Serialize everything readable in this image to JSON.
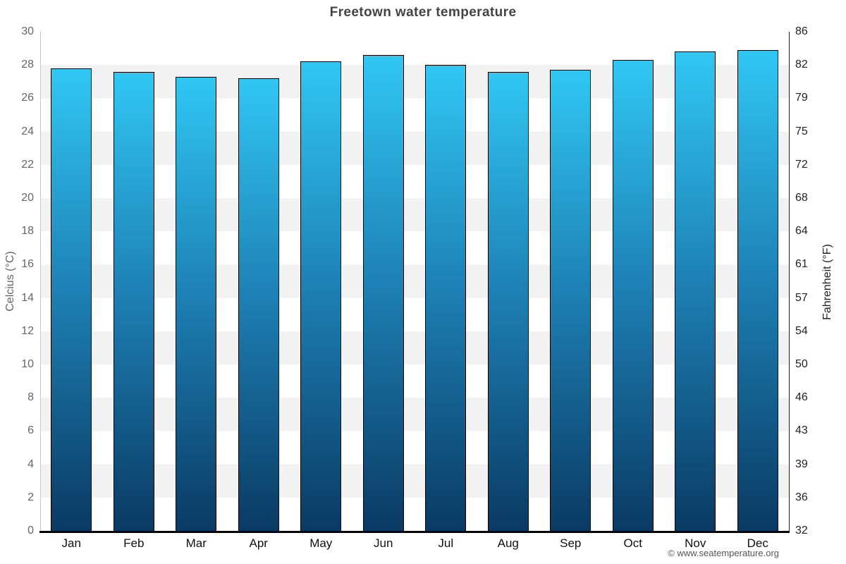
{
  "title": "Freetown water temperature",
  "footer": "© www.seatemperature.org",
  "axes": {
    "left_title": "Celcius (°C)",
    "right_title": "Fahrenheit (°F)"
  },
  "chart_data": {
    "type": "bar",
    "title": "Freetown water temperature",
    "categories": [
      "Jan",
      "Feb",
      "Mar",
      "Apr",
      "May",
      "Jun",
      "Jul",
      "Aug",
      "Sep",
      "Oct",
      "Nov",
      "Dec"
    ],
    "values": [
      27.8,
      27.6,
      27.3,
      27.2,
      28.2,
      28.6,
      28.0,
      27.6,
      27.7,
      28.3,
      28.8,
      28.9
    ],
    "xlabel": "",
    "ylabel_left": "Celcius (°C)",
    "ylabel_right": "Fahrenheit (°F)",
    "ylim": [
      0,
      30
    ],
    "celsius_ticks": [
      0,
      2,
      4,
      6,
      8,
      10,
      12,
      14,
      16,
      18,
      20,
      22,
      24,
      26,
      28,
      30
    ],
    "fahrenheit_ticks": [
      32,
      36,
      39,
      43,
      46,
      50,
      54,
      57,
      61,
      64,
      68,
      72,
      75,
      79,
      82,
      86
    ],
    "grid": "horizontal striped bands every 2°C alternating white and light gray",
    "legend": "none",
    "colors": {
      "bar_top": "#31c7f3",
      "bar_mid": "#1e80b4",
      "bar_bottom": "#0a3a63",
      "bar_border": "#000000",
      "stripe": "#f2f2f2",
      "title_text": "#444444",
      "left_axis_text": "#666666",
      "right_axis_text": "#222222"
    }
  }
}
